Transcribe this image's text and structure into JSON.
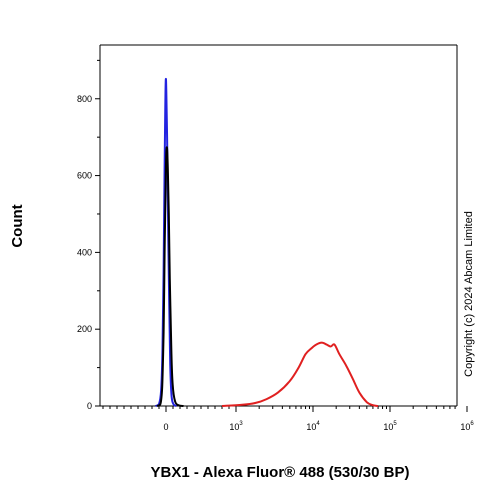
{
  "chart_data": {
    "type": "histogram",
    "xlabel": "YBX1 - Alexa Fluor® 488 (530/30 BP)",
    "ylabel": "Count",
    "annotation": "Copyright (c) 2024  Abcam Limited",
    "x_scale": "biexponential",
    "ylim": [
      0,
      940
    ],
    "y_ticks": [
      {
        "value": 0,
        "label": "0"
      },
      {
        "value": 200,
        "label": "200"
      },
      {
        "value": 400,
        "label": "400"
      },
      {
        "value": 600,
        "label": "600"
      },
      {
        "value": 800,
        "label": "800"
      }
    ],
    "x_ticks": [
      {
        "value": 0,
        "base": "0",
        "exp": ""
      },
      {
        "value": 1000,
        "base": "10",
        "exp": "3"
      },
      {
        "value": 10000,
        "base": "10",
        "exp": "4"
      },
      {
        "value": 100000,
        "base": "10",
        "exp": "5"
      },
      {
        "value": 1000000,
        "base": "10",
        "exp": "6"
      }
    ],
    "series": [
      {
        "color": "#2323e0",
        "points": [
          [
            -150,
            0
          ],
          [
            -100,
            5
          ],
          [
            -70,
            40
          ],
          [
            -50,
            150
          ],
          [
            -35,
            350
          ],
          [
            -20,
            620
          ],
          [
            -10,
            780
          ],
          [
            -3,
            850
          ],
          [
            5,
            820
          ],
          [
            15,
            700
          ],
          [
            30,
            480
          ],
          [
            45,
            270
          ],
          [
            60,
            110
          ],
          [
            80,
            25
          ],
          [
            110,
            4
          ],
          [
            150,
            0
          ]
        ]
      },
      {
        "color": "#000000",
        "points": [
          [
            -130,
            0
          ],
          [
            -80,
            5
          ],
          [
            -55,
            50
          ],
          [
            -35,
            190
          ],
          [
            -20,
            400
          ],
          [
            -5,
            580
          ],
          [
            5,
            660
          ],
          [
            15,
            670
          ],
          [
            25,
            620
          ],
          [
            40,
            500
          ],
          [
            55,
            330
          ],
          [
            75,
            150
          ],
          [
            95,
            55
          ],
          [
            130,
            12
          ],
          [
            180,
            2
          ],
          [
            250,
            0
          ]
        ]
      },
      {
        "color": "#e02020",
        "points": [
          [
            800,
            0
          ],
          [
            1200,
            3
          ],
          [
            1800,
            8
          ],
          [
            2500,
            18
          ],
          [
            3500,
            35
          ],
          [
            5000,
            65
          ],
          [
            6500,
            100
          ],
          [
            8000,
            135
          ],
          [
            9500,
            150
          ],
          [
            11000,
            160
          ],
          [
            13000,
            165
          ],
          [
            15000,
            160
          ],
          [
            17000,
            155
          ],
          [
            19000,
            160
          ],
          [
            22000,
            135
          ],
          [
            27000,
            105
          ],
          [
            33000,
            70
          ],
          [
            40000,
            35
          ],
          [
            50000,
            10
          ],
          [
            60000,
            2
          ],
          [
            70000,
            0
          ]
        ]
      }
    ]
  }
}
